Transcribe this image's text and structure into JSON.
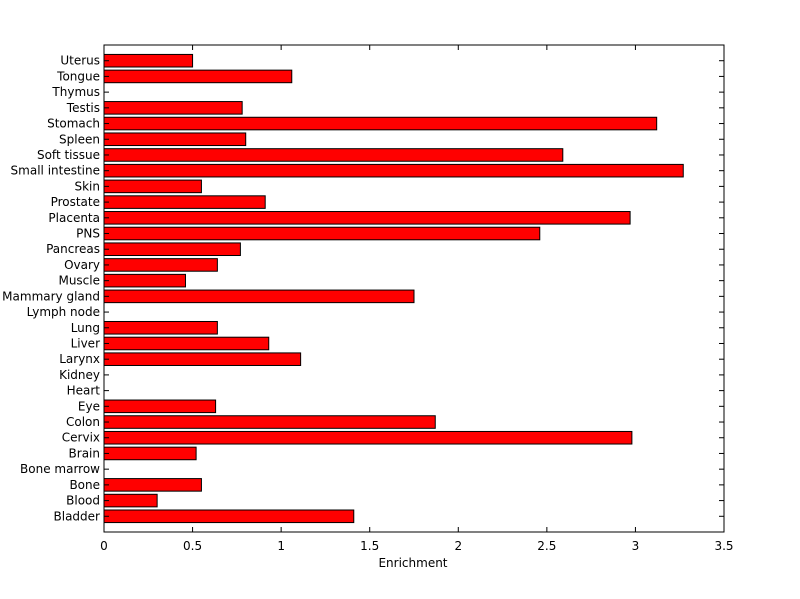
{
  "chart_data": {
    "type": "bar",
    "orientation": "horizontal",
    "title": "",
    "xlabel": "Enrichment",
    "ylabel": "",
    "xlim": [
      0,
      3.5
    ],
    "xticks": [
      0,
      0.5,
      1,
      1.5,
      2,
      2.5,
      3,
      3.5
    ],
    "xtick_labels": [
      "0",
      "0.5",
      "1",
      "1.5",
      "2",
      "2.5",
      "3",
      "3.5"
    ],
    "grid": false,
    "legend": "none",
    "bar_color": "#ff0000",
    "bar_edge_color": "#000000",
    "categories": [
      "Bladder",
      "Blood",
      "Bone",
      "Bone marrow",
      "Brain",
      "Cervix",
      "Colon",
      "Eye",
      "Heart",
      "Kidney",
      "Larynx",
      "Liver",
      "Lung",
      "Lymph node",
      "Mammary gland",
      "Muscle",
      "Ovary",
      "Pancreas",
      "PNS",
      "Placenta",
      "Prostate",
      "Skin",
      "Small intestine",
      "Soft tissue",
      "Spleen",
      "Stomach",
      "Testis",
      "Thymus",
      "Tongue",
      "Uterus"
    ],
    "values": [
      1.41,
      0.3,
      0.55,
      0,
      0.52,
      2.98,
      1.87,
      0.63,
      0,
      0,
      1.11,
      0.93,
      0.64,
      0,
      1.75,
      0.46,
      0.64,
      0.77,
      2.46,
      2.97,
      0.91,
      0.55,
      3.27,
      2.59,
      0.8,
      3.12,
      0.78,
      0,
      1.06,
      0.5
    ]
  }
}
